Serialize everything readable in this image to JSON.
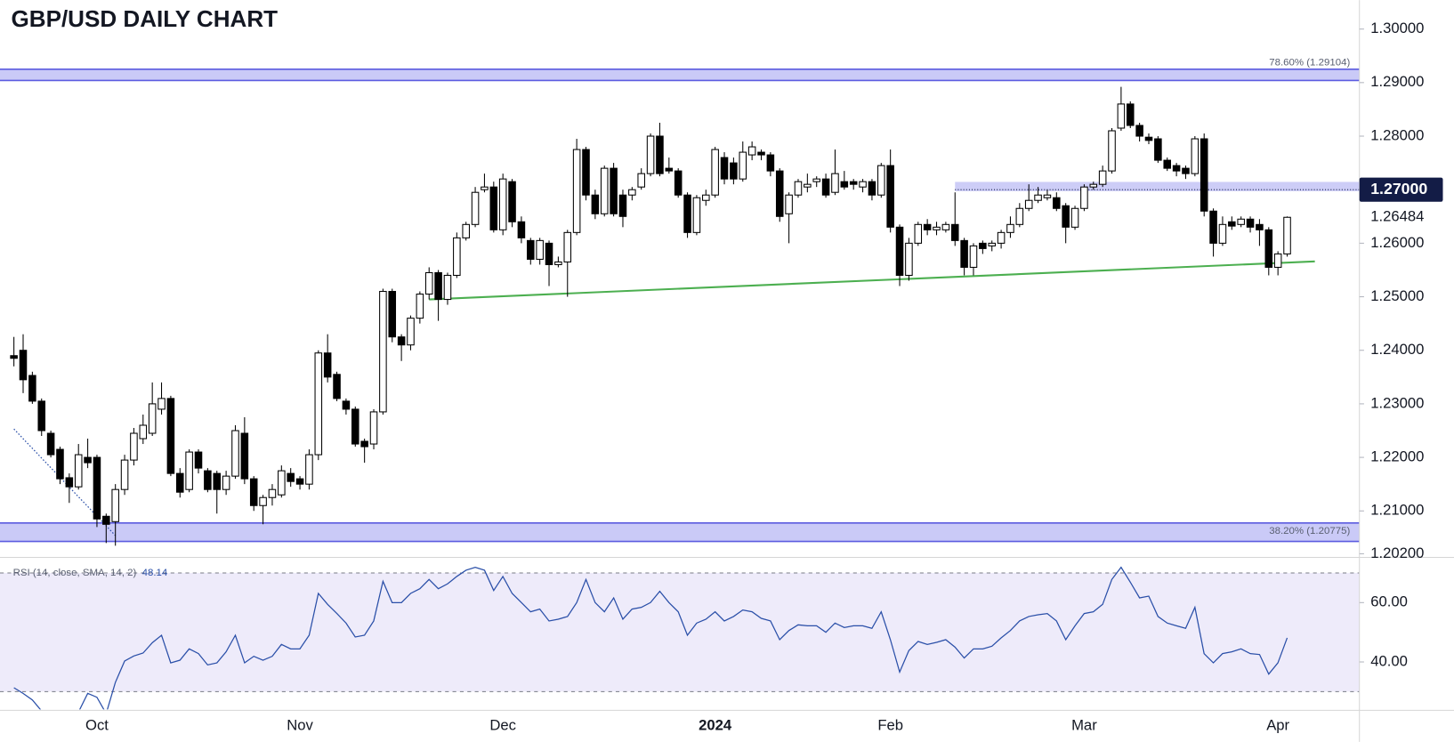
{
  "chart_data": [
    {
      "type": "candlestick",
      "title": "GBP/USD DAILY CHART",
      "categories": [
        null,
        null,
        null,
        null,
        null,
        null,
        null,
        null,
        null,
        "Oct",
        null,
        null,
        null,
        null,
        null,
        null,
        null,
        null,
        null,
        null,
        null,
        null,
        null,
        null,
        null,
        null,
        null,
        null,
        null,
        null,
        null,
        "Nov",
        null,
        null,
        null,
        null,
        null,
        null,
        null,
        null,
        null,
        null,
        null,
        null,
        null,
        null,
        null,
        null,
        null,
        null,
        null,
        null,
        null,
        "Dec",
        null,
        null,
        null,
        null,
        null,
        null,
        null,
        null,
        null,
        null,
        null,
        null,
        null,
        null,
        null,
        null,
        null,
        null,
        null,
        null,
        null,
        null,
        "2024",
        null,
        null,
        null,
        null,
        null,
        null,
        null,
        null,
        null,
        null,
        null,
        null,
        null,
        null,
        null,
        null,
        null,
        null,
        "Feb",
        null,
        null,
        null,
        null,
        null,
        null,
        null,
        null,
        null,
        null,
        null,
        null,
        null,
        null,
        null,
        null,
        null,
        null,
        null,
        null,
        "Mar",
        null,
        null,
        null,
        null,
        null,
        null,
        null,
        null,
        null,
        null,
        null,
        null,
        null,
        null,
        null,
        null,
        null,
        null,
        null,
        null,
        "Apr",
        null
      ],
      "open": [
        1.239,
        1.24,
        1.2353,
        1.2305,
        1.2245,
        1.2215,
        1.2162,
        1.2145,
        1.22,
        1.22,
        1.209,
        1.208,
        1.214,
        1.2195,
        1.2235,
        1.2245,
        1.229,
        1.231,
        1.217,
        1.214,
        1.221,
        1.2175,
        1.217,
        1.214,
        1.2165,
        1.2245,
        1.216,
        1.211,
        1.2125,
        1.213,
        1.217,
        1.216,
        1.215,
        1.2205,
        1.2395,
        1.2355,
        1.2305,
        1.229,
        1.223,
        1.2225,
        1.2285,
        1.251,
        1.2425,
        1.241,
        1.246,
        1.2505,
        1.2545,
        1.2495,
        1.254,
        1.261,
        1.2635,
        1.27,
        1.2705,
        1.2625,
        1.2715,
        1.264,
        1.2605,
        1.257,
        1.26,
        1.256,
        1.2565,
        1.262,
        1.2775,
        1.269,
        1.2655,
        1.274,
        1.269,
        1.269,
        1.2705,
        1.273,
        1.28,
        1.274,
        1.2735,
        1.269,
        1.262,
        1.268,
        1.269,
        1.276,
        1.275,
        1.272,
        1.2765,
        1.277,
        1.2765,
        1.2735,
        1.2655,
        1.269,
        1.2705,
        1.2715,
        1.272,
        1.2695,
        1.2715,
        1.2715,
        1.2705,
        1.2715,
        1.269,
        1.2745,
        1.263,
        1.254,
        1.26,
        1.2635,
        1.2625,
        1.2625,
        1.2635,
        1.2605,
        1.2555,
        1.26,
        1.2595,
        1.26,
        1.262,
        1.2635,
        1.2665,
        1.268,
        1.2685,
        1.2685,
        1.267,
        1.263,
        1.2665,
        1.2705,
        1.271,
        1.2735,
        1.2815,
        1.286,
        1.282,
        1.2798,
        1.2795,
        1.2755,
        1.2745,
        1.274,
        1.273,
        1.2795,
        1.266,
        1.26,
        1.264,
        1.2635,
        1.2645,
        1.2635,
        1.2625,
        1.2555,
        1.258
      ],
      "high": [
        1.2425,
        1.243,
        1.236,
        1.231,
        1.225,
        1.222,
        1.217,
        1.2225,
        1.2235,
        1.2205,
        1.2095,
        1.215,
        1.2205,
        1.2255,
        1.228,
        1.234,
        1.234,
        1.2315,
        1.218,
        1.2215,
        1.2215,
        1.218,
        1.2175,
        1.2175,
        1.226,
        1.2275,
        1.2165,
        1.213,
        1.215,
        1.2185,
        1.218,
        1.2165,
        1.2215,
        1.24,
        1.243,
        1.236,
        1.231,
        1.2295,
        1.2235,
        1.229,
        1.2515,
        1.2515,
        1.243,
        1.2465,
        1.251,
        1.2555,
        1.255,
        1.2545,
        1.262,
        1.264,
        1.2705,
        1.273,
        1.2715,
        1.273,
        1.272,
        1.265,
        1.261,
        1.261,
        1.2605,
        1.2575,
        1.2625,
        1.2795,
        1.278,
        1.27,
        1.2745,
        1.275,
        1.27,
        1.2705,
        1.274,
        1.2805,
        1.2825,
        1.276,
        1.274,
        1.2695,
        1.269,
        1.27,
        1.278,
        1.277,
        1.276,
        1.279,
        1.279,
        1.2775,
        1.277,
        1.274,
        1.2695,
        1.272,
        1.273,
        1.2725,
        1.273,
        1.2775,
        1.2735,
        1.272,
        1.272,
        1.272,
        1.275,
        1.2775,
        1.2635,
        1.261,
        1.264,
        1.2645,
        1.264,
        1.264,
        1.2695,
        1.261,
        1.26,
        1.2605,
        1.2605,
        1.2625,
        1.265,
        1.2675,
        1.271,
        1.2705,
        1.27,
        1.2695,
        1.2675,
        1.267,
        1.271,
        1.2715,
        1.2745,
        1.2815,
        1.2892,
        1.2865,
        1.2825,
        1.2805,
        1.28,
        1.276,
        1.275,
        1.2745,
        1.28,
        1.2805,
        1.2665,
        1.265,
        1.265,
        1.265,
        1.265,
        1.2645,
        1.263,
        1.2585,
        1.265
      ],
      "low": [
        1.237,
        1.232,
        1.23,
        1.224,
        1.22,
        1.215,
        1.2115,
        1.214,
        1.218,
        1.207,
        1.204,
        1.2035,
        1.213,
        1.2185,
        1.2225,
        1.224,
        1.228,
        1.2165,
        1.2125,
        1.2135,
        1.217,
        1.2135,
        1.2095,
        1.213,
        1.216,
        1.215,
        1.21,
        1.2075,
        1.211,
        1.2125,
        1.2145,
        1.214,
        1.214,
        1.2195,
        1.234,
        1.2305,
        1.228,
        1.222,
        1.219,
        1.2215,
        1.228,
        1.2415,
        1.238,
        1.24,
        1.245,
        1.2495,
        1.2455,
        1.2485,
        1.2535,
        1.2605,
        1.263,
        1.2695,
        1.262,
        1.2615,
        1.263,
        1.26,
        1.256,
        1.256,
        1.252,
        1.2555,
        1.25,
        1.2615,
        1.268,
        1.2645,
        1.265,
        1.265,
        1.263,
        1.268,
        1.27,
        1.2725,
        1.2725,
        1.273,
        1.2685,
        1.261,
        1.2615,
        1.267,
        1.2685,
        1.271,
        1.271,
        1.2715,
        1.2755,
        1.2755,
        1.2725,
        1.264,
        1.26,
        1.2685,
        1.2695,
        1.2705,
        1.2685,
        1.269,
        1.27,
        1.27,
        1.2695,
        1.268,
        1.2685,
        1.262,
        1.252,
        1.253,
        1.2595,
        1.2615,
        1.2615,
        1.262,
        1.2595,
        1.254,
        1.254,
        1.258,
        1.2585,
        1.259,
        1.261,
        1.263,
        1.266,
        1.2675,
        1.268,
        1.266,
        1.26,
        1.2625,
        1.266,
        1.27,
        1.2705,
        1.273,
        1.281,
        1.2815,
        1.279,
        1.2785,
        1.275,
        1.2735,
        1.2725,
        1.272,
        1.2725,
        1.265,
        1.2575,
        1.2595,
        1.2625,
        1.263,
        1.262,
        1.2595,
        1.254,
        1.254,
        1.2575
      ],
      "close": [
        1.2385,
        1.2345,
        1.2305,
        1.225,
        1.2205,
        1.216,
        1.2145,
        1.2205,
        1.219,
        1.2085,
        1.2075,
        1.214,
        1.2195,
        1.2245,
        1.226,
        1.23,
        1.231,
        1.217,
        1.2135,
        1.221,
        1.218,
        1.214,
        1.214,
        1.2165,
        1.225,
        1.216,
        1.211,
        1.2125,
        1.214,
        1.2175,
        1.2155,
        1.215,
        1.2205,
        1.2395,
        1.235,
        1.231,
        1.229,
        1.2225,
        1.222,
        1.2285,
        1.251,
        1.2425,
        1.241,
        1.246,
        1.2505,
        1.2545,
        1.2495,
        1.254,
        1.261,
        1.2635,
        1.2695,
        1.2705,
        1.2625,
        1.272,
        1.264,
        1.261,
        1.257,
        1.2605,
        1.256,
        1.2565,
        1.262,
        1.2775,
        1.269,
        1.2655,
        1.274,
        1.2655,
        1.265,
        1.27,
        1.273,
        1.28,
        1.273,
        1.2735,
        1.269,
        1.262,
        1.2685,
        1.269,
        1.2775,
        1.272,
        1.272,
        1.277,
        1.278,
        1.2765,
        1.2735,
        1.265,
        1.269,
        1.2715,
        1.271,
        1.272,
        1.269,
        1.273,
        1.2705,
        1.271,
        1.2715,
        1.269,
        1.2745,
        1.263,
        1.254,
        1.26,
        1.2635,
        1.2625,
        1.263,
        1.2635,
        1.2605,
        1.2555,
        1.2595,
        1.259,
        1.26,
        1.262,
        1.2635,
        1.2665,
        1.268,
        1.269,
        1.269,
        1.2665,
        1.263,
        1.2665,
        1.2705,
        1.271,
        1.2735,
        1.281,
        1.286,
        1.282,
        1.28,
        1.2792,
        1.2755,
        1.274,
        1.2735,
        1.273,
        1.2795,
        1.266,
        1.26,
        1.2635,
        1.2632,
        1.2645,
        1.263,
        1.2625,
        1.2555,
        1.258,
        1.26484
      ],
      "up_color": "#ffffff",
      "down_color": "#000000",
      "ylim": [
        1.2015,
        1.3054
      ],
      "yticks": [
        {
          "value": 1.3,
          "label": "1.30000"
        },
        {
          "value": 1.29,
          "label": "1.29000"
        },
        {
          "value": 1.28,
          "label": "1.28000"
        },
        {
          "value": 1.26,
          "label": "1.26000"
        },
        {
          "value": 1.25,
          "label": "1.25000"
        },
        {
          "value": 1.24,
          "label": "1.24000"
        },
        {
          "value": 1.23,
          "label": "1.23000"
        },
        {
          "value": 1.22,
          "label": "1.22000"
        },
        {
          "value": 1.21,
          "label": "1.21000"
        },
        {
          "value": 1.202,
          "label": "1.20200"
        }
      ],
      "fib_levels": [
        {
          "value": 1.29104,
          "label": "78.60% (1.29104)",
          "range": [
            1.2904,
            1.2925
          ],
          "label_side": "above"
        },
        {
          "value": 1.20775,
          "label": "38.20% (1.20775)",
          "range": [
            1.2043,
            1.20775
          ],
          "label_side": "inside"
        }
      ],
      "fib_color": "#5c5ce0",
      "fib_fill": "#b8b8f4",
      "zone": {
        "value": 1.27,
        "label": "1.27000",
        "range": [
          1.26972,
          1.27145
        ],
        "x_start": 102,
        "color": "#b8b8f4",
        "badge_color": "#131c46"
      },
      "trendlines": [
        {
          "color": "#4caf50",
          "style": "solid",
          "x": [
            45,
            141
          ],
          "y": [
            1.2495,
            1.2566
          ]
        },
        {
          "color": "#2a4fa8",
          "style": "dotted",
          "x": [
            0,
            11
          ],
          "y": [
            1.2253,
            1.2054
          ]
        }
      ]
    },
    {
      "type": "line",
      "title": "RSI (14, close, SMA, 14, 2)",
      "color": "#2a4fa8",
      "values": [
        31.3,
        29.4,
        27.2,
        23.5,
        22.8,
        21.9,
        22.4,
        23.1,
        29.4,
        28.1,
        22.6,
        33.1,
        40.3,
        42,
        43,
        46.5,
        49,
        39.7,
        40.6,
        44.4,
        42.8,
        39,
        39.7,
        43.4,
        49,
        39.7,
        41.9,
        40.6,
        41.9,
        45.9,
        44.4,
        44.4,
        49,
        63.1,
        59.4,
        56.3,
        53.1,
        48.4,
        49,
        53.8,
        67.2,
        60,
        60,
        63.1,
        64.7,
        67.8,
        64.7,
        66.3,
        68.8,
        70.9,
        71.9,
        70.9,
        64.1,
        68.8,
        63.1,
        60,
        56.9,
        57.8,
        53.8,
        54.4,
        55.3,
        60,
        67.8,
        60,
        56.9,
        61.6,
        54.4,
        57.8,
        58.4,
        60,
        63.8,
        60,
        56.9,
        49,
        53.1,
        54.4,
        56.9,
        53.8,
        55.3,
        57.5,
        56.9,
        54.7,
        53.8,
        47.5,
        50.6,
        52.5,
        52.2,
        52.2,
        50,
        53.1,
        51.6,
        52.2,
        52.2,
        51.3,
        56.9,
        47.5,
        36.6,
        43.8,
        46.9,
        45.9,
        46.6,
        47.5,
        45,
        41.3,
        44.4,
        44.4,
        45.3,
        48.1,
        50.6,
        53.8,
        55.3,
        55.9,
        56.3,
        53.8,
        47.5,
        52.2,
        56.3,
        56.9,
        59.4,
        67.8,
        71.9,
        66.9,
        61.6,
        62.2,
        55.3,
        53.1,
        52.2,
        51.3,
        58.4,
        42.8,
        39.7,
        42.8,
        43.4,
        44.4,
        42.8,
        42.5,
        35.9,
        39.7,
        48.14
      ],
      "ylim": [
        24,
        74
      ],
      "yticks": [
        {
          "value": 60,
          "label": "60.00"
        },
        {
          "value": 40,
          "label": "40.00"
        }
      ],
      "band": [
        30,
        70
      ],
      "band_fill": "#eeebfa"
    }
  ]
}
